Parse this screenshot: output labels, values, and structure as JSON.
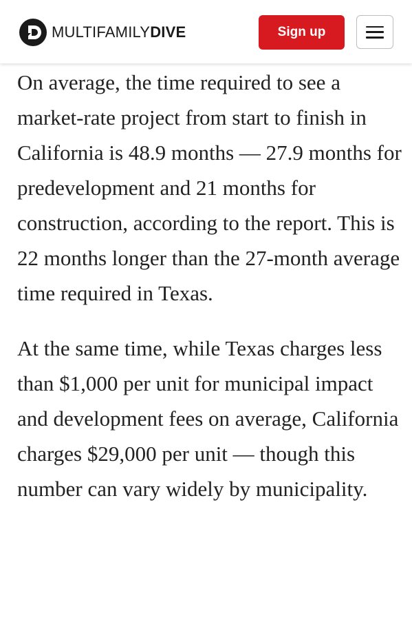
{
  "header": {
    "logo_word_light": "MULTIFAMILY",
    "logo_word_bold": "DIVE",
    "logo_icon": "dive-logo-icon",
    "signup_label": "Sign up",
    "menu_icon": "hamburger-menu-icon"
  },
  "colors": {
    "brand_red": "#d71920",
    "text": "#222222"
  },
  "article": {
    "paragraphs": [
      "On average, the time required to see a market-rate project from start to finish in California is 48.9 months — 27.9 months for predevelopment and 21 months for construction, according to the report. This is 22 months longer than the 27-month average time required in Texas.",
      "At the same time, while Texas charges less than $1,000 per unit for municipal impact and development fees on average, California charges $29,000 per unit — though this number can vary widely by municipality."
    ]
  }
}
